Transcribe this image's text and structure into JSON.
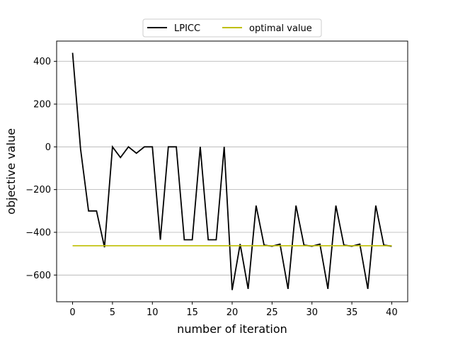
{
  "chart_data": {
    "type": "line",
    "title": "",
    "xlabel": "number of iteration",
    "ylabel": "objective value",
    "xlim": [
      -2,
      42
    ],
    "ylim": [
      -725,
      495
    ],
    "xticks": [
      0,
      5,
      10,
      15,
      20,
      25,
      30,
      35,
      40
    ],
    "yticks": [
      -600,
      -400,
      -200,
      0,
      200,
      400
    ],
    "ytick_labels": [
      "−600",
      "−400",
      "−200",
      "0",
      "200",
      "400"
    ],
    "grid": "horizontal",
    "legend_position": "top-center",
    "series": [
      {
        "name": "LPICC",
        "color": "#000000",
        "x": [
          0,
          1,
          2,
          3,
          4,
          5,
          6,
          7,
          8,
          9,
          10,
          11,
          12,
          13,
          14,
          15,
          16,
          17,
          18,
          19,
          20,
          21,
          22,
          23,
          24,
          25,
          26,
          27,
          28,
          29,
          30,
          31,
          32,
          33,
          34,
          35,
          36,
          37,
          38,
          39,
          40
        ],
        "y": [
          440,
          -10,
          -300,
          -300,
          -470,
          0,
          -50,
          0,
          -30,
          0,
          0,
          -435,
          0,
          0,
          -435,
          -435,
          0,
          -435,
          -435,
          0,
          -670,
          -455,
          -665,
          -275,
          -460,
          -465,
          -455,
          -665,
          -275,
          -460,
          -465,
          -455,
          -665,
          -275,
          -460,
          -465,
          -455,
          -665,
          -275,
          -460,
          -465
        ]
      },
      {
        "name": "optimal value",
        "color": "#bfbf00",
        "x": [
          0,
          40
        ],
        "y": [
          -463,
          -463
        ]
      }
    ]
  }
}
